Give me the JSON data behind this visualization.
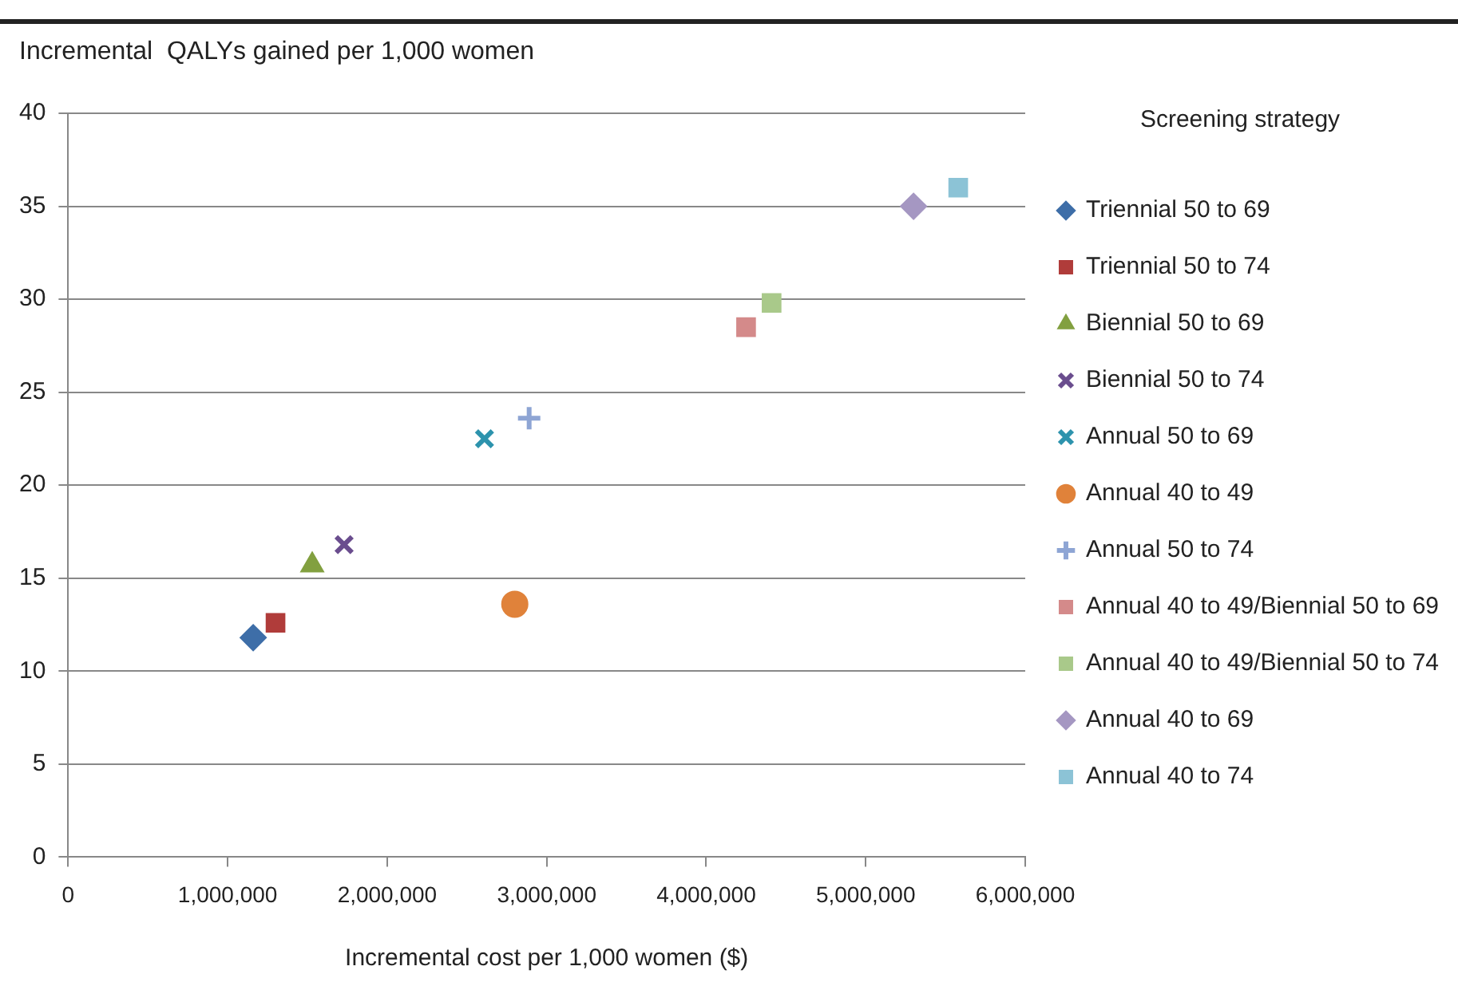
{
  "chart_data": {
    "type": "scatter",
    "xlabel": "Incremental cost per 1,000 women ($)",
    "ylabel": "Incremental  QALYs gained per 1,000 women",
    "legend_title": "Screening strategy",
    "legend": "right",
    "grid": "y",
    "xlim": [
      0,
      6000000
    ],
    "xticks": [
      0,
      {
        "value": 1000000,
        "label": "1,000,000"
      },
      {
        "value": 2000000,
        "label": "2,000,000"
      },
      {
        "value": 3000000,
        "label": "3,000,000"
      },
      {
        "value": 4000000,
        "label": "4,000,000"
      },
      {
        "value": 5000000,
        "label": "5,000,000"
      },
      {
        "value": 6000000,
        "label": "6,000,000"
      }
    ],
    "ylim": [
      0,
      40
    ],
    "yticks": [
      0,
      5,
      10,
      15,
      20,
      25,
      30,
      35,
      40
    ],
    "series": [
      {
        "name": "Triennial 50 to 69",
        "color": "#3e6ea8",
        "marker": "diamond",
        "x": [
          1160000
        ],
        "values": [
          11.8
        ]
      },
      {
        "name": "Triennial 50 to 74",
        "color": "#b03c3a",
        "marker": "square",
        "x": [
          1300000
        ],
        "values": [
          12.6
        ]
      },
      {
        "name": "Biennial 50 to 69",
        "color": "#82a040",
        "marker": "triangle",
        "x": [
          1530000
        ],
        "values": [
          15.7
        ]
      },
      {
        "name": "Biennial 50 to 74",
        "color": "#6a4d8e",
        "marker": "x",
        "x": [
          1730000
        ],
        "values": [
          16.8
        ]
      },
      {
        "name": "Annual 50 to 69",
        "color": "#2d93ad",
        "marker": "x",
        "x": [
          2610000
        ],
        "values": [
          22.5
        ]
      },
      {
        "name": "Annual 40 to 49",
        "color": "#e0823a",
        "marker": "circle",
        "x": [
          2800000
        ],
        "values": [
          13.6
        ]
      },
      {
        "name": "Annual 50 to 74",
        "color": "#8ea5d4",
        "marker": "cross",
        "x": [
          2890000
        ],
        "values": [
          23.6
        ]
      },
      {
        "name": "Annual 40 to 49/Biennial 50 to 69",
        "color": "#d48a8a",
        "marker": "square",
        "x": [
          4250000
        ],
        "values": [
          28.5
        ]
      },
      {
        "name": "Annual 40 to 49/Biennial 50 to 74",
        "color": "#a9c98a",
        "marker": "square",
        "x": [
          4410000
        ],
        "values": [
          29.8
        ]
      },
      {
        "name": "Annual 40 to 69",
        "color": "#a597c2",
        "marker": "diamond",
        "x": [
          5300000
        ],
        "values": [
          35.0
        ]
      },
      {
        "name": "Annual 40 to 74",
        "color": "#8cc3d6",
        "marker": "square",
        "x": [
          5580000
        ],
        "values": [
          36.0
        ]
      }
    ]
  }
}
